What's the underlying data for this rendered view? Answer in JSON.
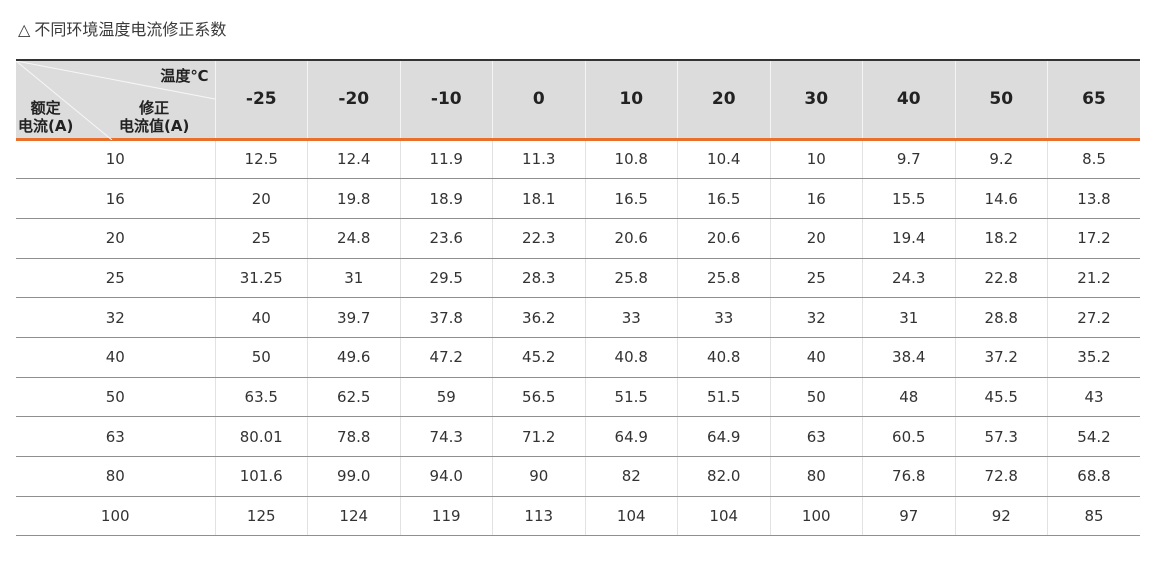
{
  "title": {
    "icon": "triangle-outline-icon",
    "text": "不同环境温度电流修正系数"
  },
  "table": {
    "corner": {
      "temp_label": "温度℃",
      "rated_label_1": "额定",
      "rated_label_2": "电流(A)",
      "corr_label_1": "修正",
      "corr_label_2": "电流值(A)"
    },
    "temperatures": [
      "-25",
      "-20",
      "-10",
      "0",
      "10",
      "20",
      "30",
      "40",
      "50",
      "65"
    ],
    "rows": [
      {
        "rated": "10",
        "values": [
          "12.5",
          "12.4",
          "11.9",
          "11.3",
          "10.8",
          "10.4",
          "10",
          "9.7",
          "9.2",
          "8.5"
        ]
      },
      {
        "rated": "16",
        "values": [
          "20",
          "19.8",
          "18.9",
          "18.1",
          "16.5",
          "16.5",
          "16",
          "15.5",
          "14.6",
          "13.8"
        ]
      },
      {
        "rated": "20",
        "values": [
          "25",
          "24.8",
          "23.6",
          "22.3",
          "20.6",
          "20.6",
          "20",
          "19.4",
          "18.2",
          "17.2"
        ]
      },
      {
        "rated": "25",
        "values": [
          "31.25",
          "31",
          "29.5",
          "28.3",
          "25.8",
          "25.8",
          "25",
          "24.3",
          "22.8",
          "21.2"
        ]
      },
      {
        "rated": "32",
        "values": [
          "40",
          "39.7",
          "37.8",
          "36.2",
          "33",
          "33",
          "32",
          "31",
          "28.8",
          "27.2"
        ]
      },
      {
        "rated": "40",
        "values": [
          "50",
          "49.6",
          "47.2",
          "45.2",
          "40.8",
          "40.8",
          "40",
          "38.4",
          "37.2",
          "35.2"
        ]
      },
      {
        "rated": "50",
        "values": [
          "63.5",
          "62.5",
          "59",
          "56.5",
          "51.5",
          "51.5",
          "50",
          "48",
          "45.5",
          "43"
        ]
      },
      {
        "rated": "63",
        "values": [
          "80.01",
          "78.8",
          "74.3",
          "71.2",
          "64.9",
          "64.9",
          "63",
          "60.5",
          "57.3",
          "54.2"
        ]
      },
      {
        "rated": "80",
        "values": [
          "101.6",
          "99.0",
          "94.0",
          "90",
          "82",
          "82.0",
          "80",
          "76.8",
          "72.8",
          "68.8"
        ]
      },
      {
        "rated": "100",
        "values": [
          "125",
          "124",
          "119",
          "113",
          "104",
          "104",
          "100",
          "97",
          "92",
          "85"
        ]
      }
    ]
  },
  "colors": {
    "header_bg": "#dcdcdc",
    "accent_rule": "#e8702a",
    "row_rule": "#8f8f8f"
  }
}
